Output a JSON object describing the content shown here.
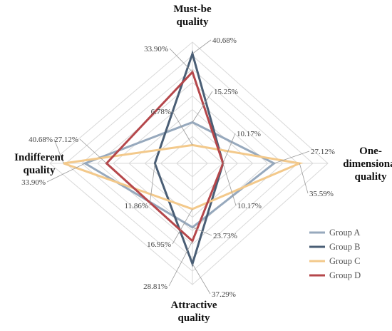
{
  "chart_data": {
    "type": "radar",
    "axes": [
      {
        "lines": [
          "Must-be",
          "quality"
        ]
      },
      {
        "lines": [
          "One-",
          "dimensional",
          "quality"
        ]
      },
      {
        "lines": [
          "Attractive",
          "quality"
        ]
      },
      {
        "lines": [
          "Indifferent",
          "quality"
        ]
      }
    ],
    "rlim": [
      0,
      45
    ],
    "series": [
      {
        "name": "Group A",
        "color": "#97a9bd",
        "values": [
          15.25,
          27.12,
          23.73,
          33.9
        ]
      },
      {
        "name": "Group B",
        "color": "#4a5e75",
        "values": [
          40.68,
          10.17,
          37.29,
          11.86
        ]
      },
      {
        "name": "Group C",
        "color": "#f3c98b",
        "values": [
          6.78,
          35.59,
          16.95,
          40.68
        ]
      },
      {
        "name": "Group D",
        "color": "#b5474b",
        "values": [
          33.9,
          10.17,
          28.81,
          27.12
        ]
      }
    ],
    "value_labels": [
      "40.68%",
      "33.90%",
      "15.25%",
      "6.78%",
      "10.17%",
      "27.12%",
      "35.59%",
      "10.17%",
      "23.73%",
      "37.29%",
      "28.81%",
      "16.95%",
      "11.86%",
      "27.12%",
      "33.90%",
      "40.68%"
    ],
    "grid": true,
    "legend": "bottom-right"
  }
}
